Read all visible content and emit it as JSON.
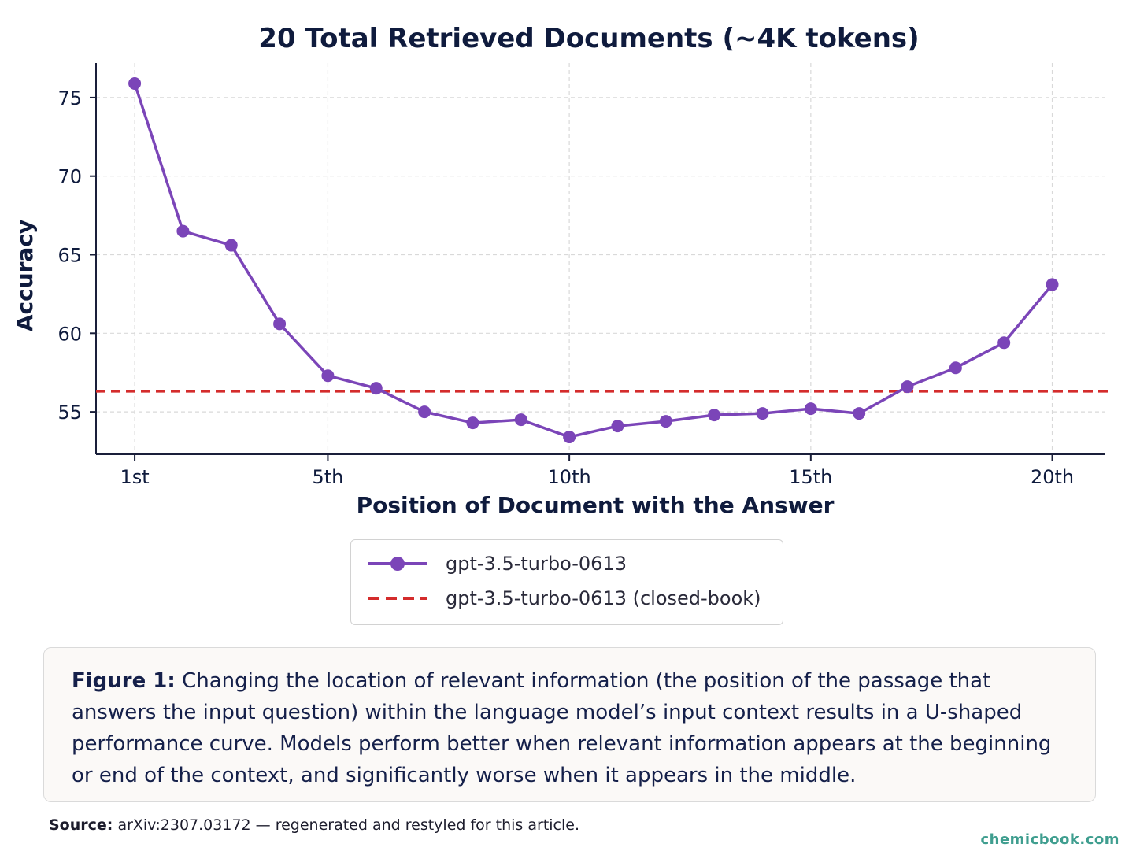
{
  "chart_data": {
    "type": "line",
    "title": "20 Total Retrieved Documents (~4K tokens)",
    "xlabel": "Position of Document with the Answer",
    "ylabel": "Accuracy",
    "x": [
      1,
      2,
      3,
      4,
      5,
      6,
      7,
      8,
      9,
      10,
      11,
      12,
      13,
      14,
      15,
      16,
      17,
      18,
      19,
      20
    ],
    "xticks": [
      1,
      5,
      10,
      15,
      20
    ],
    "xtick_labels": [
      "1st",
      "5th",
      "10th",
      "15th",
      "20th"
    ],
    "yticks": [
      55,
      60,
      65,
      70,
      75
    ],
    "ylim": [
      52.3,
      77.2
    ],
    "xlim": [
      0.2,
      21.1
    ],
    "grid": true,
    "legend_position": "below",
    "series": [
      {
        "name": "gpt-3.5-turbo-0613",
        "style": "line-marker",
        "color": "#7b45b8",
        "values": [
          75.9,
          66.5,
          65.6,
          60.6,
          57.3,
          56.5,
          55.0,
          54.3,
          54.5,
          53.4,
          54.1,
          54.4,
          54.8,
          54.9,
          55.2,
          54.9,
          56.6,
          57.8,
          59.4,
          63.1
        ]
      },
      {
        "name": "gpt-3.5-turbo-0613 (closed-book)",
        "style": "dashed",
        "color": "#d42c2c",
        "value": 56.3
      }
    ]
  },
  "caption": {
    "lead": "Figure 1:",
    "text": "Changing the location of relevant information (the position of the passage that answers the input question) within the language model’s input context results in a U-shaped performance curve. Models perform better when relevant information appears at the beginning or end of the context, and significantly worse when it appears in the middle."
  },
  "source": {
    "lead": "Source:",
    "text": "arXiv:2307.03172 — regenerated and restyled for this article."
  },
  "credit": "chemicbook.com",
  "watermark": "ChemicBook"
}
